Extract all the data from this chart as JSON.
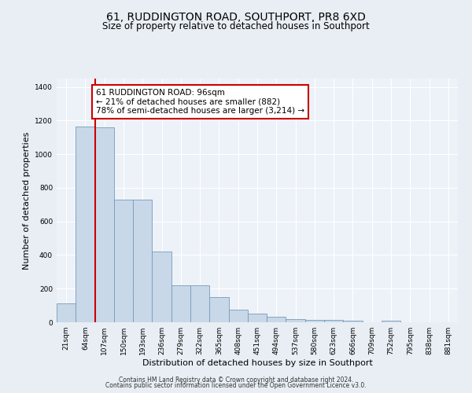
{
  "title": "61, RUDDINGTON ROAD, SOUTHPORT, PR8 6XD",
  "subtitle": "Size of property relative to detached houses in Southport",
  "xlabel": "Distribution of detached houses by size in Southport",
  "ylabel": "Number of detached properties",
  "categories": [
    "21sqm",
    "64sqm",
    "107sqm",
    "150sqm",
    "193sqm",
    "236sqm",
    "279sqm",
    "322sqm",
    "365sqm",
    "408sqm",
    "451sqm",
    "494sqm",
    "537sqm",
    "580sqm",
    "623sqm",
    "666sqm",
    "709sqm",
    "752sqm",
    "795sqm",
    "838sqm",
    "881sqm"
  ],
  "bar_values": [
    110,
    1165,
    1160,
    730,
    730,
    420,
    220,
    220,
    150,
    75,
    50,
    35,
    20,
    15,
    15,
    10,
    0,
    10,
    0,
    0,
    0
  ],
  "bar_color": "#c8d8e8",
  "bar_edge_color": "#7799bb",
  "vline_color": "#cc0000",
  "annotation_text": "61 RUDDINGTON ROAD: 96sqm\n← 21% of detached houses are smaller (882)\n78% of semi-detached houses are larger (3,214) →",
  "annotation_box_color": "#ffffff",
  "annotation_box_edge": "#cc0000",
  "ylim": [
    0,
    1450
  ],
  "yticks": [
    0,
    200,
    400,
    600,
    800,
    1000,
    1200,
    1400
  ],
  "footer1": "Contains HM Land Registry data © Crown copyright and database right 2024.",
  "footer2": "Contains public sector information licensed under the Open Government Licence v3.0.",
  "bg_color": "#e8eef4",
  "plot_bg_color": "#edf2f8"
}
